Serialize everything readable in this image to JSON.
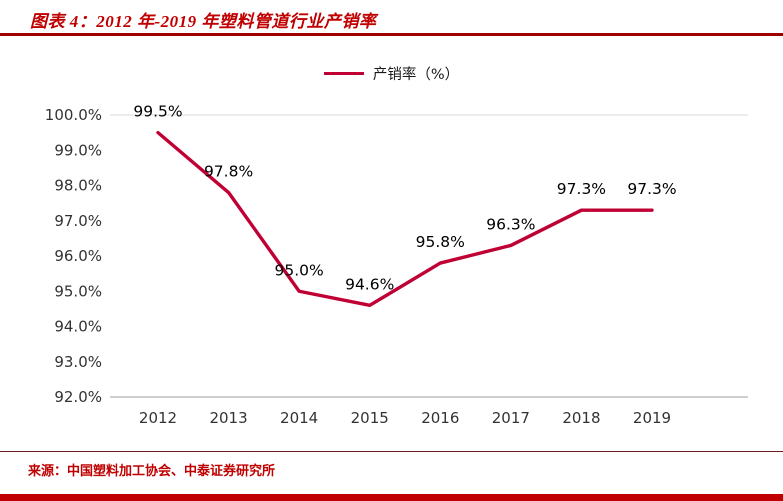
{
  "header": {
    "title": "图表 4：2012 年-2019 年塑料管道行业产销率"
  },
  "chart_data": {
    "type": "line",
    "title": "图表 4：2012 年-2019 年塑料管道行业产销率",
    "legend_label": "产销率（%）",
    "legend_position": "top",
    "categories": [
      "2012",
      "2013",
      "2014",
      "2015",
      "2016",
      "2017",
      "2018",
      "2019"
    ],
    "series": [
      {
        "name": "产销率（%）",
        "values": [
          99.5,
          97.8,
          95.0,
          94.6,
          95.8,
          96.3,
          97.3,
          97.3
        ]
      }
    ],
    "data_labels": [
      "99.5%",
      "97.8%",
      "95.0%",
      "94.6%",
      "95.8%",
      "96.3%",
      "97.3%",
      "97.3%"
    ],
    "ylim": [
      92,
      100
    ],
    "y_ticks": [
      "100.0%",
      "99.0%",
      "98.0%",
      "97.0%",
      "96.0%",
      "95.0%",
      "94.0%",
      "93.0%",
      "92.0%"
    ],
    "grid": false,
    "line_color": "#c00034",
    "label_color": "#000000",
    "axis_color": "#bfbfbf",
    "tick_text_color": "#333333"
  },
  "footer": {
    "source": "来源：中国塑料加工协会、中泰证券研究所"
  }
}
